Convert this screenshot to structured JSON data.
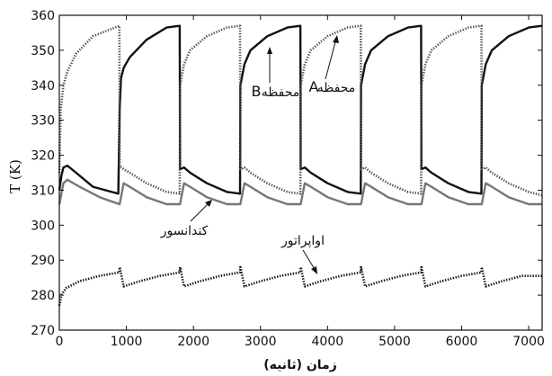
{
  "chart_data": {
    "type": "line",
    "title": "",
    "xlabel": "زمان (ثانیه)",
    "ylabel": "T (K)",
    "xlim": [
      0,
      7200
    ],
    "ylim": [
      270,
      360
    ],
    "xticks": [
      "0",
      "1000",
      "2000",
      "3000",
      "4000",
      "5000",
      "6000",
      "7000"
    ],
    "yticks": [
      "270",
      "280",
      "290",
      "300",
      "310",
      "320",
      "330",
      "340",
      "350",
      "360"
    ],
    "cycle_period": 900,
    "series": [
      {
        "name": "محفظه B",
        "style": "solid",
        "color": "#111111",
        "x": [
          0,
          30,
          60,
          120,
          250,
          500,
          880,
          900,
          920,
          960,
          1050,
          1300,
          1600,
          1795,
          1800,
          1860,
          1950,
          2200,
          2500,
          2695,
          2700,
          2760,
          2850,
          3100,
          3400,
          3595,
          3600,
          3660,
          3750,
          4000,
          4300,
          4495,
          4500,
          4560,
          4650,
          4900,
          5200,
          5395,
          5400,
          5460,
          5550,
          5800,
          6100,
          6295,
          6300,
          6360,
          6450,
          6700,
          7000,
          7200
        ],
        "y": [
          310,
          314,
          316.5,
          317,
          315,
          311,
          309,
          333,
          342,
          345,
          348,
          353,
          356.5,
          357,
          316,
          316.5,
          315,
          312,
          309.5,
          309,
          340,
          346,
          350,
          354,
          356.5,
          357,
          316,
          316.5,
          315,
          312,
          309.5,
          309,
          340,
          346,
          350,
          354,
          356.5,
          357,
          316,
          316.5,
          315,
          312,
          309.5,
          309,
          340,
          346,
          350,
          354,
          356.5,
          357
        ]
      },
      {
        "name": "محفظه A",
        "style": "dotted",
        "color": "#555555",
        "x": [
          0,
          20,
          60,
          120,
          250,
          500,
          895,
          900,
          960,
          1050,
          1300,
          1600,
          1795,
          1800,
          1860,
          1950,
          2200,
          2500,
          2695,
          2700,
          2760,
          2850,
          3100,
          3400,
          3595,
          3600,
          3660,
          3750,
          4000,
          4300,
          4495,
          4500,
          4560,
          4650,
          4900,
          5200,
          5395,
          5400,
          5460,
          5550,
          5800,
          6100,
          6295,
          6300,
          6360,
          6450,
          6700,
          7000,
          7200
        ],
        "y": [
          315,
          333,
          340,
          344,
          349,
          354,
          357,
          317,
          316,
          315,
          312,
          309.5,
          309,
          340,
          346,
          350,
          354,
          356.5,
          357,
          316,
          316.5,
          315,
          312,
          309.5,
          309,
          340,
          346,
          350,
          354,
          356.5,
          357,
          316,
          316.5,
          315,
          312,
          309.5,
          309,
          340,
          346,
          350,
          354,
          356.5,
          357,
          316,
          316.5,
          315,
          312,
          309.5,
          308.5
        ]
      },
      {
        "name": "کندانسور",
        "style": "solid",
        "color": "#777777",
        "x": [
          0,
          60,
          120,
          300,
          600,
          895,
          900,
          960,
          1050,
          1300,
          1600,
          1795,
          1800,
          1860,
          1950,
          2200,
          2500,
          2695,
          2700,
          2760,
          2850,
          3100,
          3400,
          3595,
          3600,
          3660,
          3750,
          4000,
          4300,
          4495,
          4500,
          4560,
          4650,
          4900,
          5200,
          5395,
          5400,
          5460,
          5550,
          5800,
          6100,
          6295,
          6300,
          6360,
          6450,
          6700,
          7000,
          7200
        ],
        "y": [
          306,
          312,
          313,
          311,
          308,
          306,
          306,
          312,
          311,
          308,
          306,
          306,
          306,
          312,
          311,
          308,
          306,
          306,
          306,
          312,
          311,
          308,
          306,
          306,
          306,
          312,
          311,
          308,
          306,
          306,
          306,
          312,
          311,
          308,
          306,
          306,
          306,
          312,
          311,
          308,
          306,
          306,
          306,
          312,
          311,
          308,
          306,
          306
        ]
      },
      {
        "name": "اواپراتور",
        "style": "dotted",
        "color": "#111111",
        "x": [
          0,
          30,
          100,
          300,
          600,
          895,
          900,
          960,
          1200,
          1500,
          1795,
          1800,
          1860,
          2100,
          2400,
          2695,
          2700,
          2760,
          3000,
          3300,
          3595,
          3600,
          3660,
          3900,
          4200,
          4495,
          4500,
          4560,
          4800,
          5100,
          5395,
          5400,
          5460,
          5700,
          6000,
          6295,
          6300,
          6360,
          6600,
          6900,
          7200
        ],
        "y": [
          277,
          280,
          282,
          284,
          285.5,
          286.5,
          288,
          282.5,
          284,
          285.5,
          286.5,
          288,
          282.5,
          284,
          285.5,
          286.5,
          288,
          282.5,
          284,
          285.5,
          286.5,
          288,
          282.5,
          284,
          285.5,
          286.5,
          288,
          282.5,
          284,
          285.5,
          286.5,
          288,
          282.5,
          284,
          285.5,
          286.5,
          288,
          282.5,
          284,
          285.5,
          285.5
        ]
      }
    ],
    "annotations": [
      {
        "text": "محفظه",
        "tag": "B"
      },
      {
        "text": "محفظه",
        "tag": "A"
      },
      {
        "text": "کندانسور"
      },
      {
        "text": "اواپراتور"
      }
    ]
  }
}
